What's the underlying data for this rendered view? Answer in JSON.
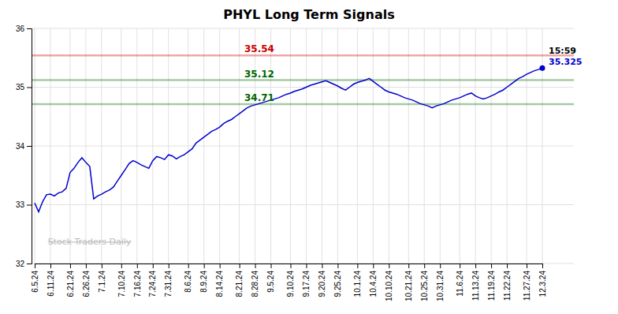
{
  "chart_data": {
    "type": "line",
    "title": "PHYL Long Term Signals",
    "categories": [
      "6.5.24",
      null,
      null,
      null,
      "6.11.24",
      null,
      null,
      null,
      null,
      "6.21.24",
      null,
      null,
      null,
      "6.26.24",
      null,
      null,
      null,
      "7.1.24",
      null,
      null,
      null,
      null,
      "7.10.24",
      null,
      null,
      null,
      "7.16.24",
      null,
      null,
      null,
      "7.24.24",
      null,
      null,
      null,
      "7.31.24",
      null,
      null,
      null,
      null,
      "8.6.24",
      null,
      null,
      null,
      "8.9.24",
      null,
      null,
      null,
      "8.14.24",
      null,
      null,
      null,
      null,
      "8.21.24",
      null,
      null,
      null,
      "8.28.24",
      null,
      null,
      null,
      "9.5.24",
      null,
      null,
      null,
      null,
      "9.10.24",
      null,
      null,
      null,
      "9.17.24",
      null,
      null,
      null,
      "9.20.24",
      null,
      null,
      null,
      "9.25.24",
      null,
      null,
      null,
      null,
      "10.1.24",
      null,
      null,
      null,
      "10.4.24",
      null,
      null,
      null,
      "10.10.24",
      null,
      null,
      null,
      null,
      "10.21.24",
      null,
      null,
      null,
      "10.25.24",
      null,
      null,
      null,
      "10.31.24",
      null,
      null,
      null,
      null,
      "11.6.24",
      null,
      null,
      null,
      "11.13.24",
      null,
      null,
      null,
      "11.19.24",
      null,
      null,
      null,
      "11.22.24",
      null,
      null,
      null,
      null,
      "11.27.24",
      null,
      null,
      null,
      "12.3.24"
    ],
    "values": [
      33.03,
      32.88,
      33.05,
      33.17,
      33.18,
      33.15,
      33.2,
      33.22,
      33.28,
      33.55,
      33.62,
      33.72,
      33.8,
      33.72,
      33.65,
      33.1,
      33.15,
      33.18,
      33.22,
      33.25,
      33.3,
      33.4,
      33.5,
      33.6,
      33.7,
      33.75,
      33.72,
      33.68,
      33.65,
      33.62,
      33.75,
      33.82,
      33.8,
      33.77,
      33.85,
      33.83,
      33.78,
      33.82,
      33.85,
      33.9,
      33.95,
      34.05,
      34.1,
      34.15,
      34.2,
      34.25,
      34.28,
      34.32,
      34.38,
      34.42,
      34.45,
      34.5,
      34.55,
      34.6,
      34.65,
      34.68,
      34.7,
      34.72,
      34.74,
      34.76,
      34.78,
      34.8,
      34.82,
      34.85,
      34.88,
      34.9,
      34.93,
      34.95,
      34.97,
      35.0,
      35.03,
      35.05,
      35.07,
      35.09,
      35.11,
      35.08,
      35.05,
      35.02,
      34.98,
      34.95,
      35.0,
      35.05,
      35.08,
      35.1,
      35.12,
      35.15,
      35.1,
      35.05,
      35.0,
      34.95,
      34.92,
      34.9,
      34.88,
      34.85,
      34.82,
      34.8,
      34.78,
      34.75,
      34.72,
      34.7,
      34.68,
      34.65,
      34.68,
      34.7,
      34.72,
      34.75,
      34.78,
      34.8,
      34.82,
      34.85,
      34.88,
      34.9,
      34.85,
      34.82,
      34.8,
      34.82,
      34.85,
      34.88,
      34.92,
      34.95,
      35.0,
      35.05,
      35.1,
      35.15,
      35.18,
      35.22,
      35.25,
      35.28,
      35.3,
      35.325
    ],
    "color": "#0000cc",
    "ylim": [
      32,
      36
    ],
    "yticks": [
      32,
      33,
      34,
      35,
      36
    ],
    "grid": true,
    "reference_lines": [
      {
        "value": 35.54,
        "label": "35.54",
        "color": "#cc0000"
      },
      {
        "value": 35.12,
        "label": "35.12",
        "color": "#006600"
      },
      {
        "value": 34.71,
        "label": "34.71",
        "color": "#006600"
      }
    ],
    "last_label": "15:59",
    "watermark": "Stock Traders Daily"
  }
}
